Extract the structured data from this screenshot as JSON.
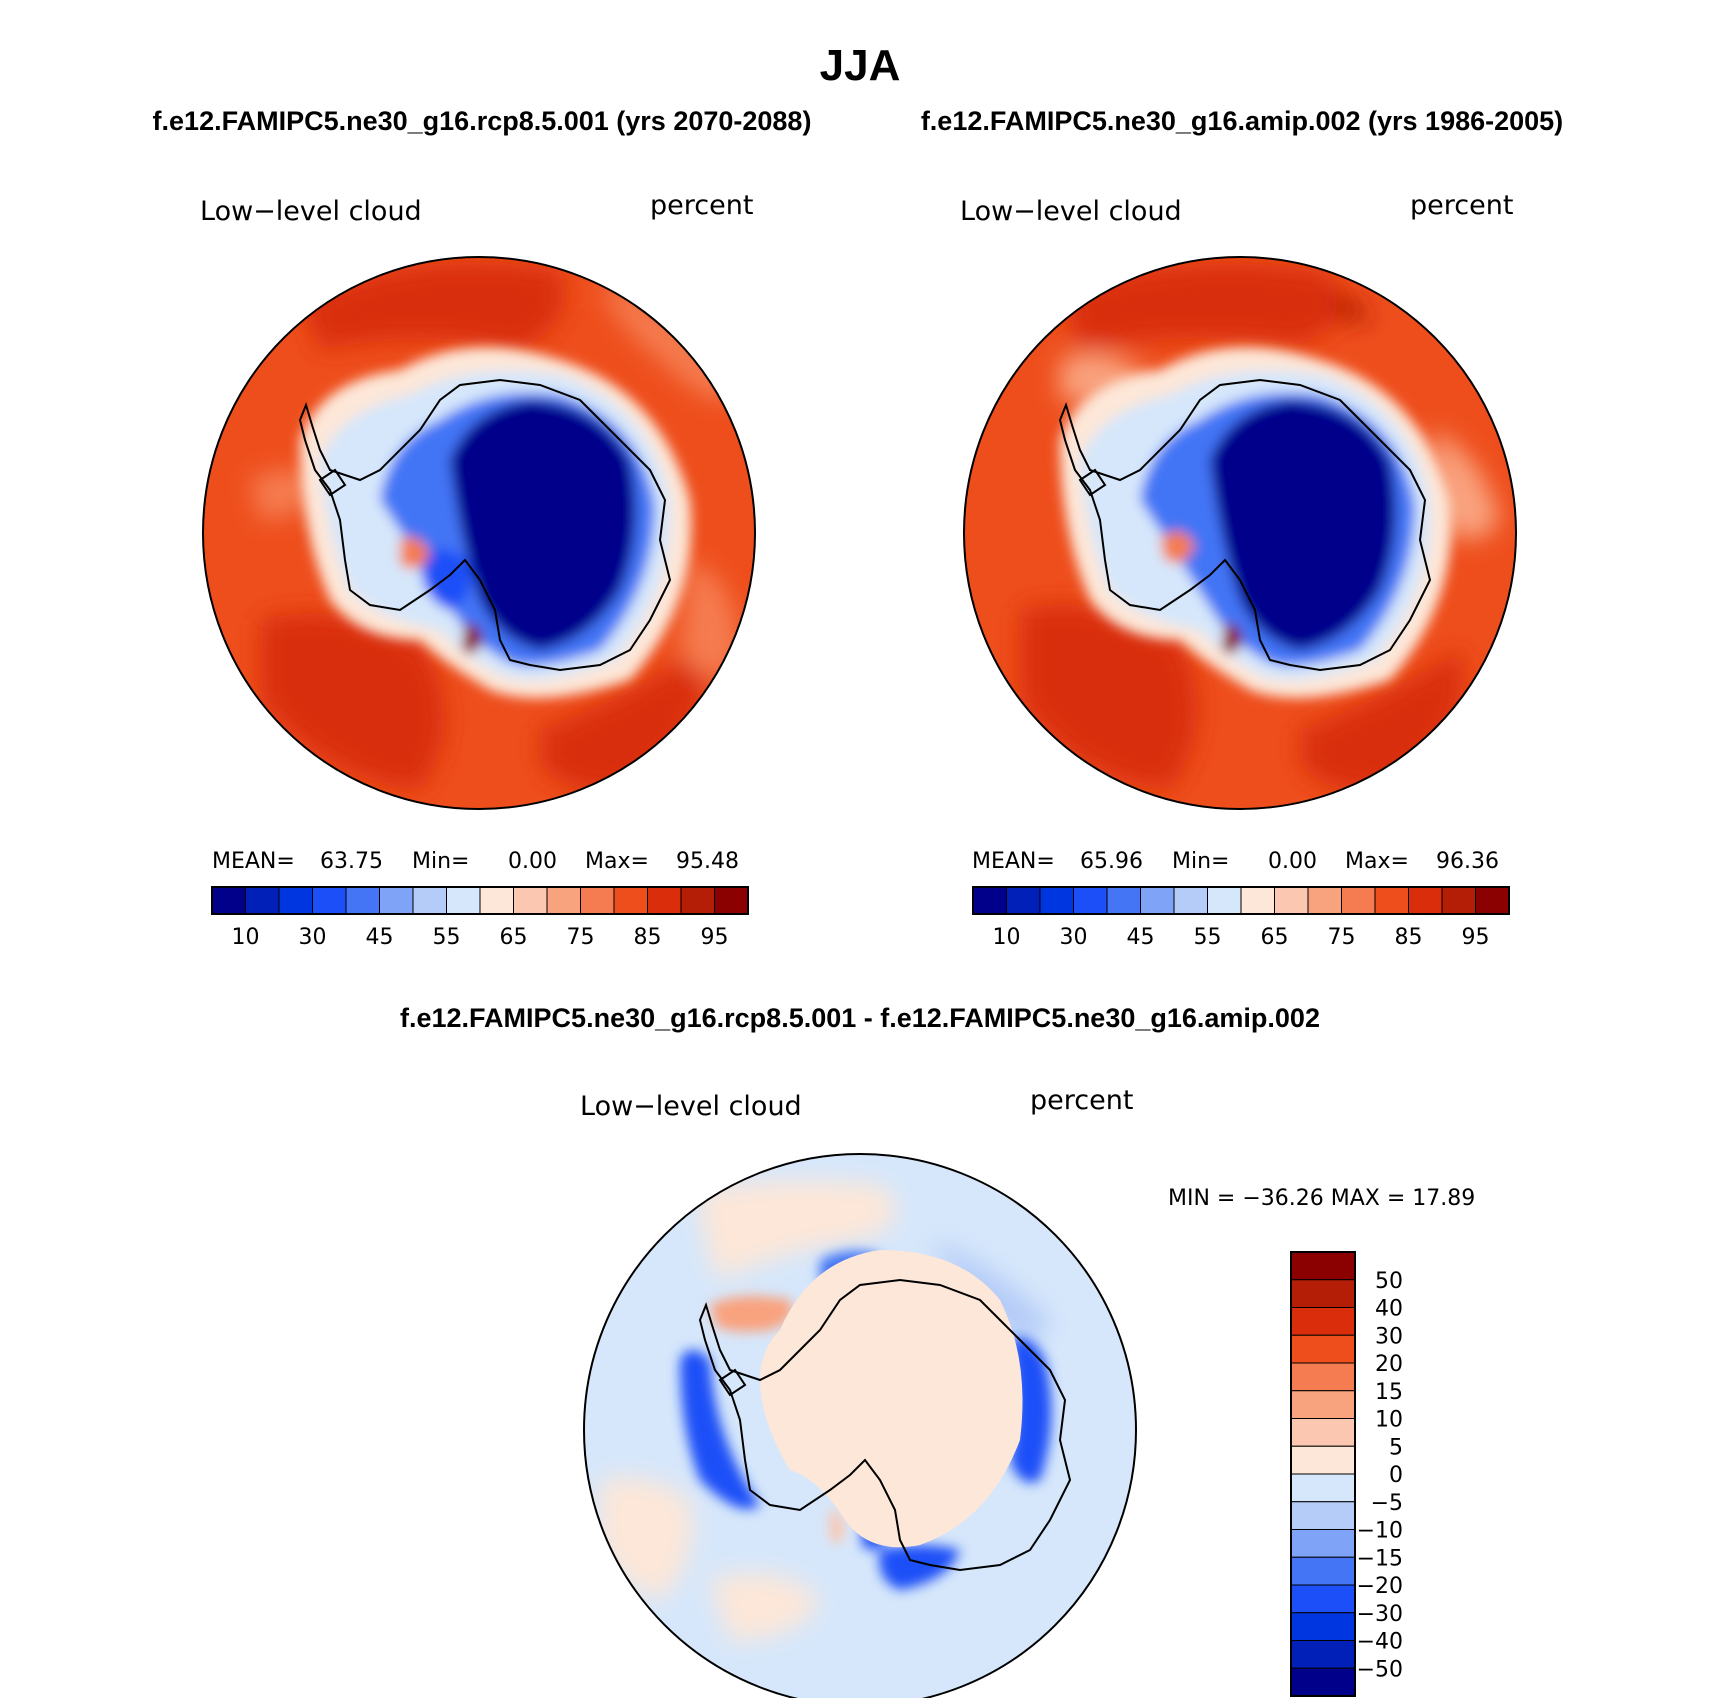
{
  "figure": {
    "season": "JJA",
    "case_a": "f.e12.FAMIPC5.ne30_g16.rcp8.5.001 (yrs 2070-2088)",
    "case_b": "f.e12.FAMIPC5.ne30_g16.amip.002 (yrs 1986-2005)",
    "diff_title": "f.e12.FAMIPC5.ne30_g16.rcp8.5.001 - f.e12.FAMIPC5.ne30_g16.amip.002"
  },
  "panels": [
    {
      "id": "rcp85",
      "variable": "Low−level cloud",
      "units": "percent",
      "stats": {
        "mean_label": "MEAN=",
        "mean": "63.75",
        "min_label": "Min=",
        "min": "0.00",
        "max_label": "Max=",
        "max": "95.48"
      }
    },
    {
      "id": "amip",
      "variable": "Low−level cloud",
      "units": "percent",
      "stats": {
        "mean_label": "MEAN=",
        "mean": "65.96",
        "min_label": "Min=",
        "min": "0.00",
        "max_label": "Max=",
        "max": "96.36"
      }
    },
    {
      "id": "diff",
      "variable": "Low−level cloud",
      "units": "percent",
      "stats_text": "MIN = −36.26 MAX =  17.89"
    }
  ],
  "colorbars": {
    "absolute": {
      "colors": [
        "#00008b",
        "#0020b8",
        "#0036e0",
        "#1c4ff7",
        "#4375f5",
        "#7fa3f7",
        "#b5ccf8",
        "#d6e7fb",
        "#fde7d8",
        "#fbc7b0",
        "#f9a27e",
        "#f57b50",
        "#ee4e1c",
        "#d92d0b",
        "#b41e06",
        "#8b0000"
      ],
      "tick_labels": [
        "10",
        "30",
        "45",
        "55",
        "65",
        "75",
        "85",
        "95"
      ]
    },
    "difference": {
      "colors": [
        "#00008b",
        "#0020b8",
        "#0036e0",
        "#1c4ff7",
        "#4375f5",
        "#7fa3f7",
        "#b5ccf8",
        "#d6e7fb",
        "#fde7d8",
        "#fbc7b0",
        "#f9a27e",
        "#f57b50",
        "#ee4e1c",
        "#d92d0b",
        "#b41e06",
        "#8b0000"
      ],
      "tick_labels": [
        "50",
        "40",
        "30",
        "20",
        "15",
        "10",
        "5",
        "0",
        "−5",
        "−10",
        "−15",
        "−20",
        "−30",
        "−40",
        "−50"
      ]
    }
  },
  "colors": {
    "ocean_abs": "#ee4e1c",
    "ocean_abs_dark": "#d92d0b",
    "ice_interior": "#00008b",
    "diff_background": "#d6e7fb",
    "diff_positive": "#fde7d8",
    "diff_negative": "#1c4ff7"
  }
}
